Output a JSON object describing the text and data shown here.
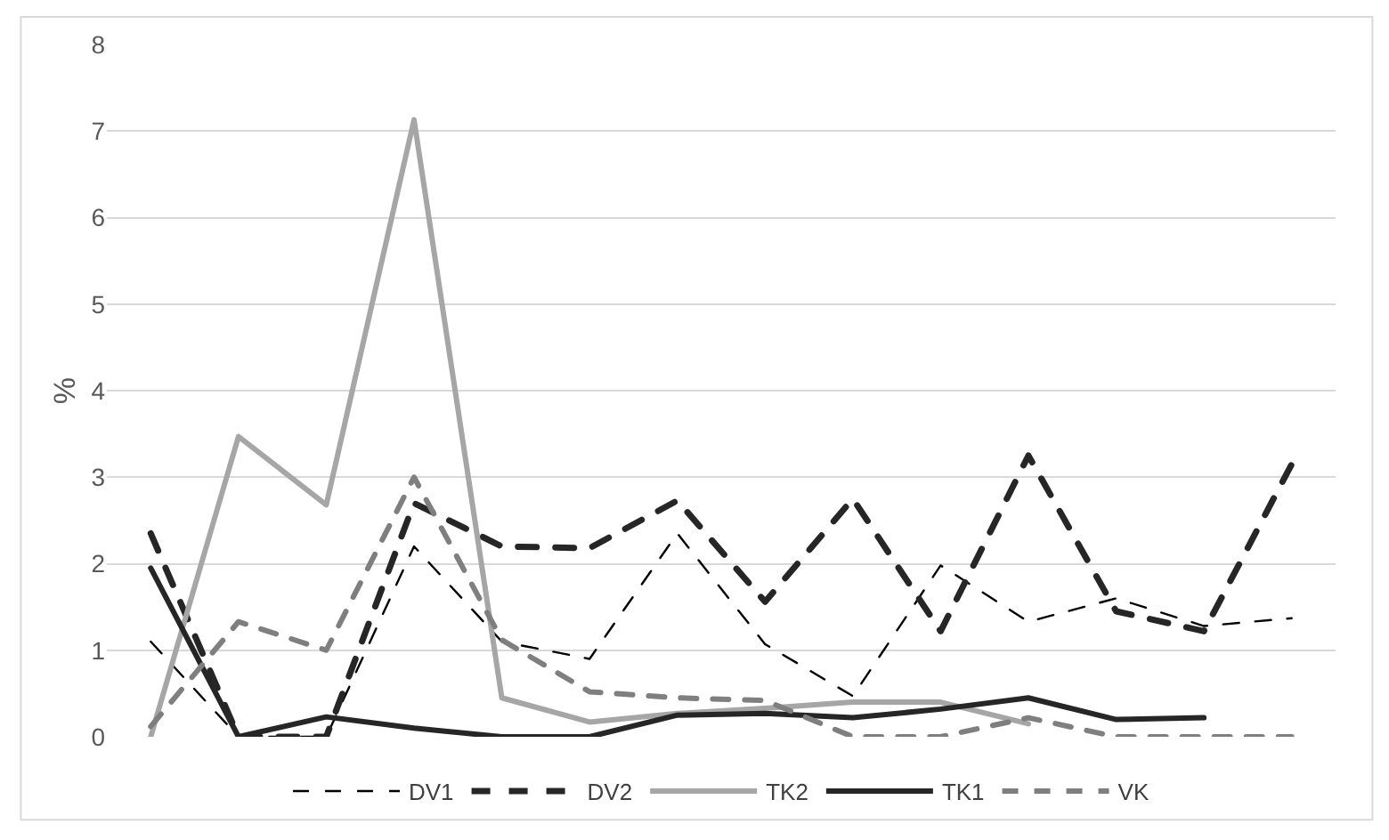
{
  "chart_data": {
    "type": "line",
    "ylabel": "%",
    "categories": [
      null,
      null,
      null,
      null,
      null,
      null,
      null,
      null,
      null,
      null,
      null,
      null,
      null,
      null
    ],
    "series": [
      {
        "name": "DV1",
        "color": "#000000",
        "line_style": "dashed",
        "values": [
          1.1,
          0,
          0,
          2.2,
          1.1,
          0.9,
          2.35,
          1.07,
          0.47,
          1.98,
          1.33,
          1.6,
          1.28,
          1.37
        ]
      },
      {
        "name": "DV2",
        "color": "#262626",
        "line_style": "dashed",
        "values": [
          2.35,
          0,
          0,
          2.7,
          2.2,
          2.18,
          2.73,
          1.56,
          2.75,
          1.22,
          3.25,
          1.45,
          1.22,
          3.15
        ]
      },
      {
        "name": "TK2",
        "color": "#a6a6a6",
        "line_style": "solid",
        "values": [
          0,
          3.47,
          2.68,
          7.13,
          0.45,
          0.17,
          0.27,
          0.33,
          0.4,
          0.4,
          0.15,
          null,
          null,
          null
        ]
      },
      {
        "name": "TK1",
        "color": "#262626",
        "line_style": "solid",
        "values": [
          1.95,
          0,
          0.23,
          0.1,
          0,
          0,
          0.25,
          0.27,
          0.22,
          0.32,
          0.45,
          0.2,
          0.22,
          null
        ]
      },
      {
        "name": "VK",
        "color": "#7f7f7f",
        "line_style": "dashed",
        "values": [
          0.12,
          1.33,
          1.0,
          3.0,
          1.12,
          0.52,
          0.45,
          0.42,
          0,
          0,
          0.22,
          0,
          0,
          0
        ]
      }
    ],
    "ylim": [
      0,
      8
    ],
    "yticks": [
      0,
      1,
      2,
      3,
      4,
      5,
      6,
      7,
      8
    ],
    "grid": "y",
    "legend": "bottom",
    "marker": "none"
  }
}
